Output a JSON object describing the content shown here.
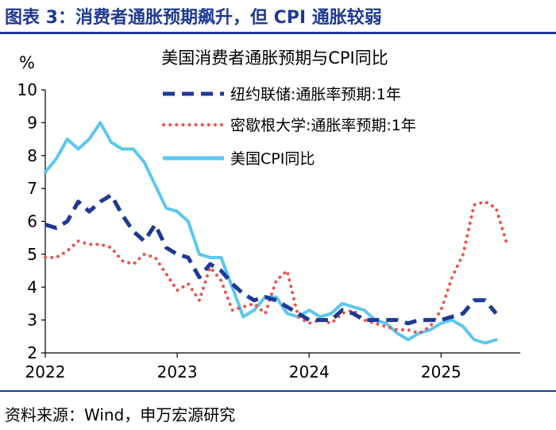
{
  "figure": {
    "title": "图表 3：消费者通胀预期飙升，但 CPI 通胀较弱",
    "source": "资料来源：Wind，申万宏源研究"
  },
  "colors": {
    "brand": "#1f3a93",
    "ny_fed": "#1f3a93",
    "michigan": "#e8554e",
    "cpi": "#5cc7ef"
  },
  "chart_data": {
    "type": "line",
    "title": "美国消费者通胀预期与CPI同比",
    "ylabel": "%",
    "xlabel": "",
    "ylim": [
      2,
      10
    ],
    "yticks": [
      "2",
      "3",
      "4",
      "5",
      "6",
      "7",
      "8",
      "9",
      "10"
    ],
    "xlim": [
      2022.0,
      2025.6
    ],
    "xticks": [
      {
        "value": 2022,
        "label": "2022"
      },
      {
        "value": 2023,
        "label": "2023"
      },
      {
        "value": 2024,
        "label": "2024"
      },
      {
        "value": 2025,
        "label": "2025"
      }
    ],
    "legend_position": "top-right",
    "series": [
      {
        "name": "纽约联储:通胀率预期:1年",
        "style": "dashed",
        "x": [
          2022.0,
          2022.083,
          2022.167,
          2022.25,
          2022.333,
          2022.417,
          2022.5,
          2022.583,
          2022.667,
          2022.75,
          2022.833,
          2022.917,
          2023.0,
          2023.083,
          2023.167,
          2023.25,
          2023.333,
          2023.417,
          2023.5,
          2023.583,
          2023.667,
          2023.75,
          2023.833,
          2023.917,
          2024.0,
          2024.083,
          2024.167,
          2024.25,
          2024.333,
          2024.417,
          2024.5,
          2024.583,
          2024.667,
          2024.75,
          2024.833,
          2024.917,
          2025.0,
          2025.083,
          2025.167,
          2025.25,
          2025.333,
          2025.417
        ],
        "values": [
          5.9,
          5.8,
          6.0,
          6.6,
          6.3,
          6.6,
          6.8,
          6.2,
          5.7,
          5.4,
          5.9,
          5.2,
          5.0,
          4.9,
          4.3,
          4.7,
          4.5,
          4.1,
          3.8,
          3.6,
          3.7,
          3.6,
          3.4,
          3.2,
          3.0,
          3.0,
          3.0,
          3.3,
          3.2,
          3.0,
          3.0,
          3.0,
          3.0,
          2.9,
          3.0,
          3.0,
          3.0,
          3.1,
          3.2,
          3.6,
          3.6,
          3.2
        ]
      },
      {
        "name": "密歇根大学:通胀率预期:1年",
        "style": "dotted",
        "x": [
          2022.0,
          2022.083,
          2022.167,
          2022.25,
          2022.333,
          2022.417,
          2022.5,
          2022.583,
          2022.667,
          2022.75,
          2022.833,
          2022.917,
          2023.0,
          2023.083,
          2023.167,
          2023.25,
          2023.333,
          2023.417,
          2023.5,
          2023.583,
          2023.667,
          2023.75,
          2023.833,
          2023.917,
          2024.0,
          2024.083,
          2024.167,
          2024.25,
          2024.333,
          2024.417,
          2024.5,
          2024.583,
          2024.667,
          2024.75,
          2024.833,
          2024.917,
          2025.0,
          2025.083,
          2025.167,
          2025.25,
          2025.333,
          2025.417,
          2025.5
        ],
        "values": [
          4.9,
          4.9,
          5.1,
          5.4,
          5.3,
          5.3,
          5.2,
          4.8,
          4.7,
          5.0,
          4.9,
          4.4,
          3.9,
          4.1,
          3.6,
          4.6,
          4.2,
          3.3,
          3.4,
          3.5,
          3.2,
          4.2,
          4.5,
          3.1,
          2.9,
          3.0,
          2.9,
          3.2,
          3.3,
          3.0,
          2.9,
          2.8,
          2.7,
          2.7,
          2.6,
          2.8,
          3.3,
          4.3,
          5.0,
          6.5,
          6.6,
          6.4,
          5.3
        ]
      },
      {
        "name": "美国CPI同比",
        "style": "solid",
        "x": [
          2022.0,
          2022.083,
          2022.167,
          2022.25,
          2022.333,
          2022.417,
          2022.5,
          2022.583,
          2022.667,
          2022.75,
          2022.833,
          2022.917,
          2023.0,
          2023.083,
          2023.167,
          2023.25,
          2023.333,
          2023.417,
          2023.5,
          2023.583,
          2023.667,
          2023.75,
          2023.833,
          2023.917,
          2024.0,
          2024.083,
          2024.167,
          2024.25,
          2024.333,
          2024.417,
          2024.5,
          2024.583,
          2024.667,
          2024.75,
          2024.833,
          2024.917,
          2025.0,
          2025.083,
          2025.167,
          2025.25,
          2025.333,
          2025.417
        ],
        "values": [
          7.5,
          7.9,
          8.5,
          8.2,
          8.5,
          9.0,
          8.4,
          8.2,
          8.2,
          7.8,
          7.1,
          6.4,
          6.3,
          6.0,
          5.0,
          4.9,
          4.9,
          4.0,
          3.1,
          3.3,
          3.7,
          3.7,
          3.2,
          3.1,
          3.3,
          3.1,
          3.2,
          3.5,
          3.4,
          3.3,
          3.0,
          2.9,
          2.6,
          2.4,
          2.6,
          2.7,
          2.9,
          3.0,
          2.8,
          2.4,
          2.3,
          2.4
        ]
      }
    ]
  }
}
